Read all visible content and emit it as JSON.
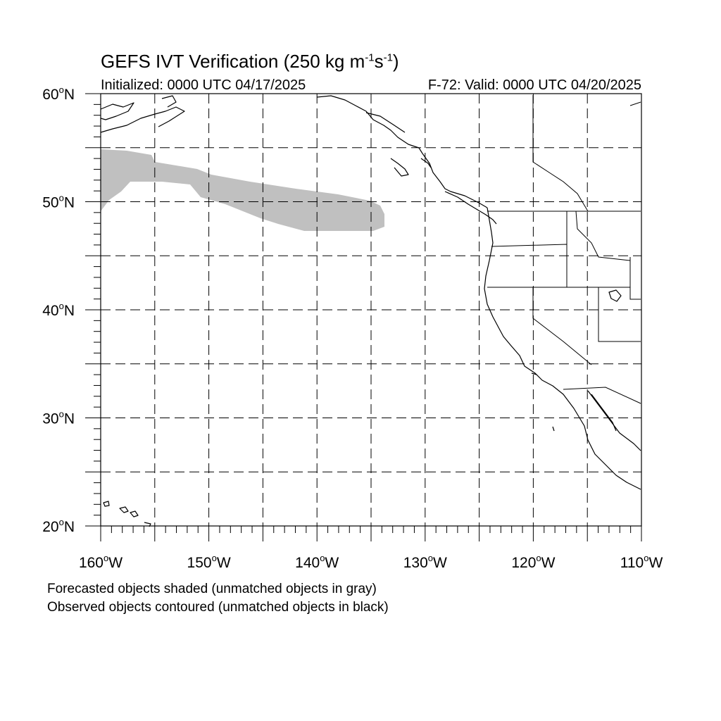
{
  "title": {
    "main": "GEFS IVT Verification (250 kg m",
    "sup1": "-1",
    "mid": "s",
    "sup2": "-1",
    "end": ")"
  },
  "init_label": "Initialized: 0000 UTC 04/17/2025",
  "valid_label": "F-72: Valid: 0000 UTC 04/20/2025",
  "lat_ticks": [
    {
      "deg": "60",
      "suffix": "N",
      "value": 60
    },
    {
      "deg": "50",
      "suffix": "N",
      "value": 50
    },
    {
      "deg": "40",
      "suffix": "N",
      "value": 40
    },
    {
      "deg": "30",
      "suffix": "N",
      "value": 30
    },
    {
      "deg": "20",
      "suffix": "N",
      "value": 20
    }
  ],
  "lon_ticks": [
    {
      "deg": "160",
      "suffix": "W",
      "value": -160
    },
    {
      "deg": "150",
      "suffix": "W",
      "value": -150
    },
    {
      "deg": "140",
      "suffix": "W",
      "value": -140
    },
    {
      "deg": "130",
      "suffix": "W",
      "value": -130
    },
    {
      "deg": "120",
      "suffix": "W",
      "value": -120
    },
    {
      "deg": "110",
      "suffix": "W",
      "value": -110
    }
  ],
  "extent": {
    "lon": [
      -160,
      -110
    ],
    "lat": [
      20,
      60
    ]
  },
  "legend": {
    "line1": "Forecasted objects shaded (unmatched objects in gray)",
    "line2": "Observed objects contoured (unmatched objects in black)"
  },
  "colors": {
    "unmatched_forecast": "#c0c0c0",
    "coast": "#000000",
    "grid": "#000000"
  }
}
